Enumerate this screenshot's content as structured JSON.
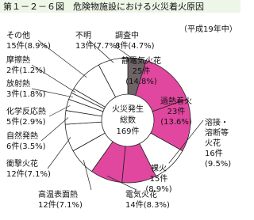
{
  "chart_data": {
    "type": "donut",
    "title": "第１－２－６図　危険物施設における火災着火原因",
    "note": "（平成19年中）",
    "center_text": [
      "火災発生",
      "総数",
      "169件"
    ],
    "categories": [
      "調査中",
      "静電気火花",
      "過熱着火",
      "溶接・溶断等火花",
      "裸火",
      "電気火花",
      "高温表面熱",
      "衝撃火花",
      "自然発熱",
      "化学反応熱",
      "放射熱",
      "摩擦熱",
      "その他",
      "不明"
    ],
    "values": [
      8,
      25,
      23,
      16,
      15,
      14,
      12,
      12,
      6,
      5,
      3,
      2,
      15,
      13
    ],
    "value_labels": [
      "8件",
      "25件",
      "23件",
      "16件",
      "15件",
      "14件",
      "12件",
      "12件",
      "6件",
      "5件",
      "3件",
      "2件",
      "15件",
      "13件"
    ],
    "percents": [
      4.7,
      14.8,
      13.6,
      9.5,
      8.9,
      8.3,
      7.1,
      7.1,
      3.5,
      2.9,
      1.8,
      1.2,
      8.9,
      7.7
    ],
    "percent_labels": [
      "(4.7%)",
      "(14.8%)",
      "(13.6%)",
      "(9.5%)",
      "(8.9%)",
      "(8.3%)",
      "(7.1%)",
      "(7.1%)",
      "(3.5%)",
      "(2.9%)",
      "(1.8%)",
      "(1.2%)",
      "(8.9%)",
      "(7.7%)"
    ],
    "colors": [
      "#6e6466",
      "#e2479f",
      "#e2479f",
      "#ffffff",
      "#e2479f",
      "#e2479f",
      "#ffffff",
      "#ffffff",
      "#ffffff",
      "#ffffff",
      "#ffffff",
      "#ffffff",
      "#ffffff",
      "#ffffff"
    ]
  }
}
